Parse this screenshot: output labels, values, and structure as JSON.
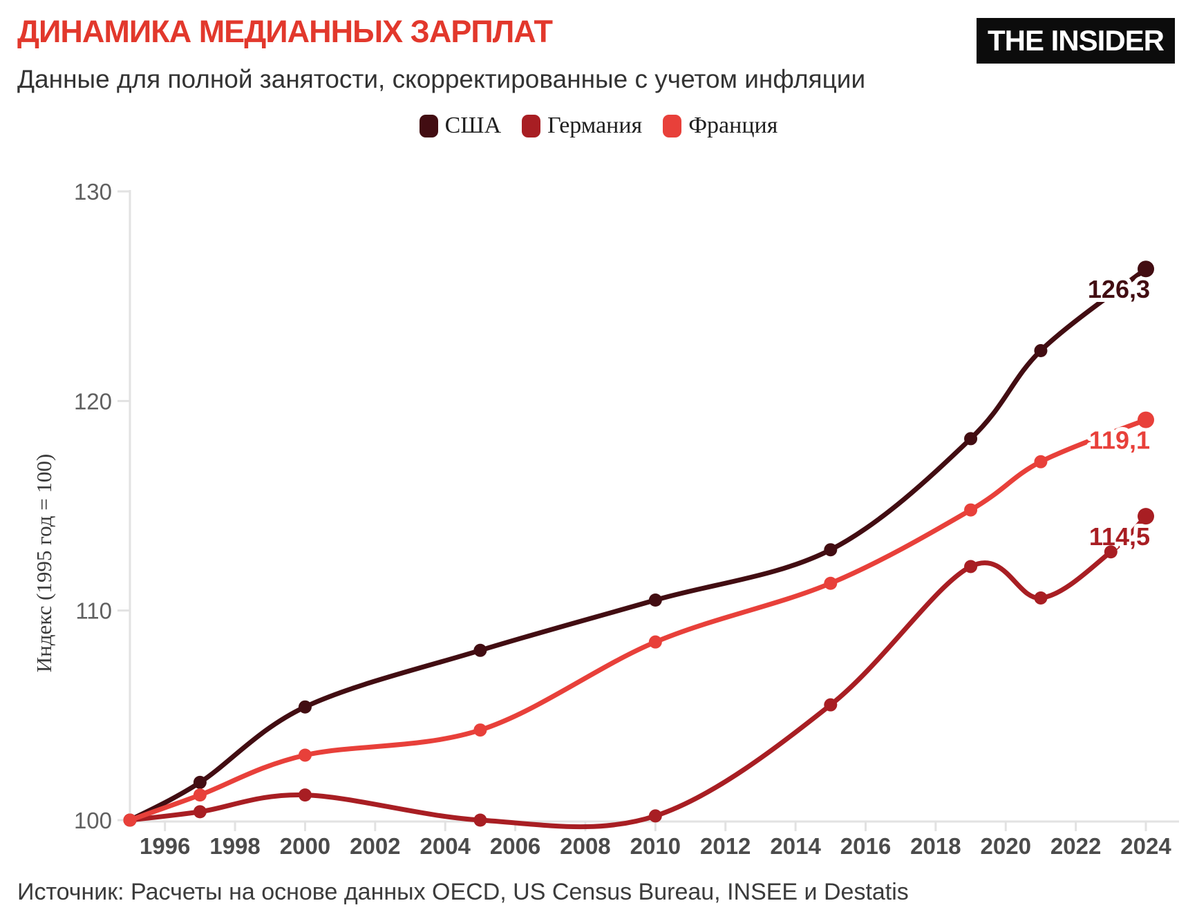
{
  "header": {
    "title": "ДИНАМИКА МЕДИАННЫХ ЗАРПЛАТ",
    "title_color": "#e2382c",
    "subtitle": "Данные для полной занятости, скорректированные с учетом инфляции",
    "logo_text": "THE INSIDER"
  },
  "footer": {
    "source": "Источник: Расчеты на основе данных OECD, US Census Bureau, INSEE и Destatis"
  },
  "chart_data": {
    "type": "line",
    "title": "ДИНАМИКА МЕДИАННЫХ ЗАРПЛАТ",
    "subtitle": "Данные для полной занятости, скорректированные с учетом инфляции",
    "ylabel": "Индекс (1995 год = 100)",
    "xlim": [
      1995,
      2024
    ],
    "ylim": [
      100,
      130
    ],
    "y_ticks": [
      100,
      110,
      120,
      130
    ],
    "x_ticks": [
      1996,
      1998,
      2000,
      2002,
      2004,
      2006,
      2008,
      2010,
      2012,
      2014,
      2016,
      2018,
      2020,
      2022,
      2024
    ],
    "grid": false,
    "legend_position": "top-center",
    "axis_color": "#e2e2e2",
    "series": [
      {
        "name": "США",
        "color": "#420d12",
        "x": [
          1995,
          1997,
          2000,
          2005,
          2010,
          2015,
          2019,
          2021,
          2024
        ],
        "values": [
          100,
          101.8,
          105.4,
          108.1,
          110.5,
          112.9,
          118.2,
          122.4,
          126.3
        ],
        "end_label": "126,3"
      },
      {
        "name": "Германия",
        "color": "#a81e23",
        "x": [
          1995,
          1997,
          2000,
          2005,
          2010,
          2015,
          2019,
          2021,
          2023,
          2024
        ],
        "values": [
          100,
          100.4,
          101.2,
          100,
          100.2,
          105.5,
          112.1,
          110.6,
          112.8,
          114.5
        ],
        "end_label": "114,5"
      },
      {
        "name": "Франция",
        "color": "#e8403a",
        "x": [
          1995,
          1997,
          2000,
          2005,
          2010,
          2015,
          2019,
          2021,
          2024
        ],
        "values": [
          100,
          101.2,
          103.1,
          104.3,
          108.5,
          111.3,
          114.8,
          117.1,
          119.1
        ],
        "end_label": "119,1"
      }
    ]
  }
}
